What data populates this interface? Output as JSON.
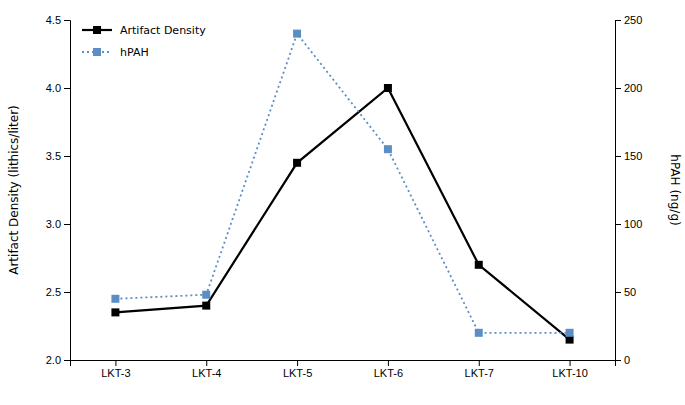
{
  "chart_data": {
    "type": "line",
    "categories": [
      "LKT-3",
      "LKT-4",
      "LKT-5",
      "LKT-6",
      "LKT-7",
      "LKT-10"
    ],
    "series": [
      {
        "name": "Artifact Density",
        "color": "#000000",
        "values": [
          2.35,
          2.4,
          3.45,
          4.0,
          2.7,
          2.15
        ],
        "marker": "square",
        "line_style": "solid"
      },
      {
        "name": "hPAH",
        "color": "#5b8ec4",
        "values": [
          45,
          48,
          240,
          155,
          20,
          20
        ],
        "marker": "square",
        "line_style": "dotted",
        "axis": "y2"
      }
    ],
    "ylabel": "Artifact Density (lithics/liter)",
    "y2label": "hPAH (ng/g)",
    "ylim": [
      2.0,
      4.5
    ],
    "yticks": [
      {
        "value": 2.0,
        "label": "2.0"
      },
      2.5,
      {
        "value": 3.0,
        "label": "3.0"
      },
      3.5,
      {
        "value": 4.0,
        "label": "4.0"
      },
      4.5
    ],
    "y2lim": [
      0,
      250
    ],
    "y2ticks": [
      0,
      50,
      100,
      150,
      200,
      250
    ],
    "legend": "upper left",
    "grid": false
  }
}
